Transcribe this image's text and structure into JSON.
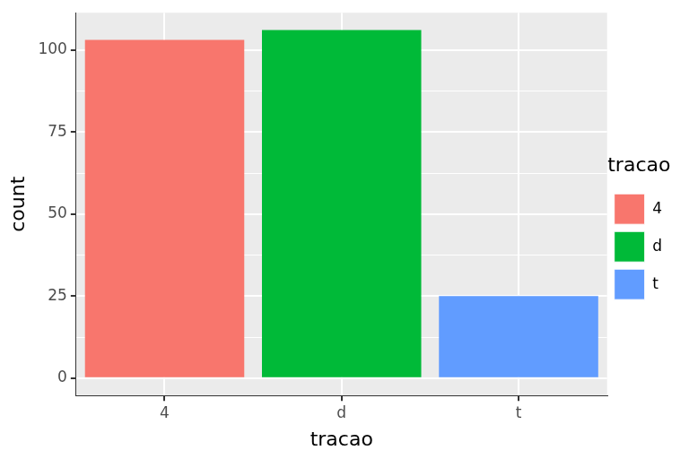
{
  "chart_data": {
    "type": "bar",
    "x_label": "tracao",
    "y_label": "count",
    "legend_title": "tracao",
    "categories": [
      "4",
      "d",
      "t"
    ],
    "values": [
      103,
      106,
      25
    ],
    "colors": [
      "#F8766D",
      "#00BA38",
      "#619CFF"
    ],
    "ylim": [
      -5.3,
      111.3
    ],
    "yticks": [
      0,
      25,
      50,
      75,
      100
    ],
    "grid": true,
    "legend": "right"
  }
}
